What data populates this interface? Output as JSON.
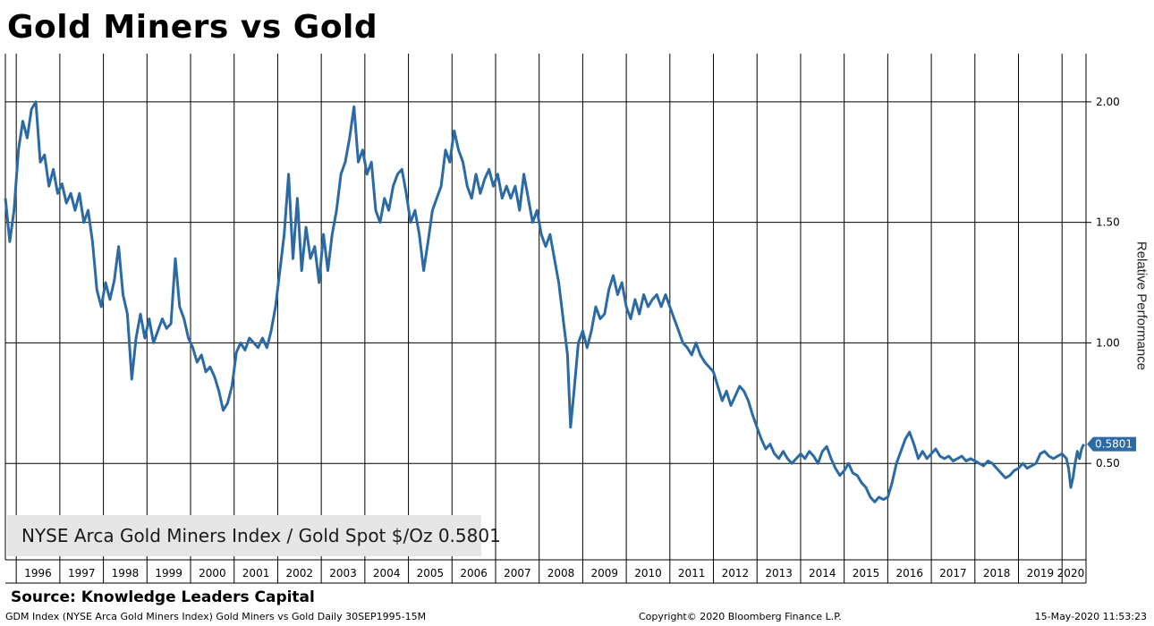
{
  "title": "Gold Miners vs Gold",
  "source": "Source: Knowledge Leaders Capital",
  "footer": {
    "left": "GDM Index (NYSE Arca Gold Miners Index) Gold Miners vs Gold  Daily 30SEP1995-15M",
    "middle": "Copyright© 2020 Bloomberg Finance L.P.",
    "right": "15-May-2020 11:53:23"
  },
  "legend": {
    "label": "NYSE Arca Gold Miners Index / Gold Spot $/Oz 0.5801"
  },
  "colors": {
    "series": "#2b6aa4",
    "grid": "#000000",
    "legend_bg": "#e6e6e6"
  },
  "chart_data": {
    "type": "line",
    "title": "Gold Miners vs Gold",
    "ylabel": "Relative Performance",
    "y_ticks": [
      2.0,
      1.5,
      1.0,
      0.5
    ],
    "y_tick_labels": [
      "2.00",
      "1.50",
      "1.00",
      "0.50"
    ],
    "ylim": [
      0.1,
      2.2
    ],
    "xlim": [
      1995.75,
      2020.55
    ],
    "x_years": [
      "1996",
      "1997",
      "1998",
      "1999",
      "2000",
      "2001",
      "2002",
      "2003",
      "2004",
      "2005",
      "2006",
      "2007",
      "2008",
      "2009",
      "2010",
      "2011",
      "2012",
      "2013",
      "2014",
      "2015",
      "2016",
      "2017",
      "2018",
      "2019",
      "2020"
    ],
    "grid": true,
    "y_axis_side": "right",
    "last_value": 0.5801,
    "last_value_label": "0.5801",
    "series": [
      {
        "name": "NYSE Arca Gold Miners Index / Gold Spot $/Oz",
        "points": [
          [
            1995.75,
            1.6
          ],
          [
            1995.85,
            1.42
          ],
          [
            1995.95,
            1.55
          ],
          [
            1996.05,
            1.8
          ],
          [
            1996.15,
            1.92
          ],
          [
            1996.25,
            1.85
          ],
          [
            1996.35,
            1.97
          ],
          [
            1996.45,
            2.0
          ],
          [
            1996.55,
            1.75
          ],
          [
            1996.65,
            1.78
          ],
          [
            1996.75,
            1.65
          ],
          [
            1996.85,
            1.72
          ],
          [
            1996.95,
            1.62
          ],
          [
            1997.05,
            1.66
          ],
          [
            1997.15,
            1.58
          ],
          [
            1997.25,
            1.62
          ],
          [
            1997.35,
            1.55
          ],
          [
            1997.45,
            1.62
          ],
          [
            1997.55,
            1.5
          ],
          [
            1997.65,
            1.55
          ],
          [
            1997.75,
            1.42
          ],
          [
            1997.85,
            1.22
          ],
          [
            1997.95,
            1.15
          ],
          [
            1998.05,
            1.25
          ],
          [
            1998.15,
            1.18
          ],
          [
            1998.25,
            1.26
          ],
          [
            1998.35,
            1.4
          ],
          [
            1998.45,
            1.2
          ],
          [
            1998.55,
            1.12
          ],
          [
            1998.65,
            0.85
          ],
          [
            1998.75,
            1.02
          ],
          [
            1998.85,
            1.12
          ],
          [
            1998.95,
            1.02
          ],
          [
            1999.05,
            1.1
          ],
          [
            1999.15,
            1.0
          ],
          [
            1999.25,
            1.05
          ],
          [
            1999.35,
            1.1
          ],
          [
            1999.45,
            1.06
          ],
          [
            1999.55,
            1.08
          ],
          [
            1999.65,
            1.35
          ],
          [
            1999.75,
            1.15
          ],
          [
            1999.85,
            1.1
          ],
          [
            1999.95,
            1.02
          ],
          [
            2000.05,
            0.98
          ],
          [
            2000.15,
            0.92
          ],
          [
            2000.25,
            0.95
          ],
          [
            2000.35,
            0.88
          ],
          [
            2000.45,
            0.9
          ],
          [
            2000.55,
            0.86
          ],
          [
            2000.65,
            0.8
          ],
          [
            2000.75,
            0.72
          ],
          [
            2000.85,
            0.75
          ],
          [
            2000.95,
            0.82
          ],
          [
            2001.05,
            0.96
          ],
          [
            2001.15,
            1.0
          ],
          [
            2001.25,
            0.97
          ],
          [
            2001.35,
            1.02
          ],
          [
            2001.45,
            1.0
          ],
          [
            2001.55,
            0.98
          ],
          [
            2001.65,
            1.02
          ],
          [
            2001.75,
            0.98
          ],
          [
            2001.85,
            1.05
          ],
          [
            2001.95,
            1.15
          ],
          [
            2002.05,
            1.3
          ],
          [
            2002.15,
            1.45
          ],
          [
            2002.25,
            1.7
          ],
          [
            2002.35,
            1.35
          ],
          [
            2002.45,
            1.6
          ],
          [
            2002.55,
            1.3
          ],
          [
            2002.65,
            1.48
          ],
          [
            2002.75,
            1.35
          ],
          [
            2002.85,
            1.4
          ],
          [
            2002.95,
            1.25
          ],
          [
            2003.05,
            1.45
          ],
          [
            2003.15,
            1.3
          ],
          [
            2003.25,
            1.45
          ],
          [
            2003.35,
            1.55
          ],
          [
            2003.45,
            1.7
          ],
          [
            2003.55,
            1.75
          ],
          [
            2003.65,
            1.85
          ],
          [
            2003.75,
            1.98
          ],
          [
            2003.85,
            1.75
          ],
          [
            2003.95,
            1.8
          ],
          [
            2004.05,
            1.7
          ],
          [
            2004.15,
            1.75
          ],
          [
            2004.25,
            1.55
          ],
          [
            2004.35,
            1.5
          ],
          [
            2004.45,
            1.6
          ],
          [
            2004.55,
            1.55
          ],
          [
            2004.65,
            1.65
          ],
          [
            2004.75,
            1.7
          ],
          [
            2004.85,
            1.72
          ],
          [
            2004.95,
            1.62
          ],
          [
            2005.05,
            1.5
          ],
          [
            2005.15,
            1.55
          ],
          [
            2005.25,
            1.45
          ],
          [
            2005.35,
            1.3
          ],
          [
            2005.45,
            1.42
          ],
          [
            2005.55,
            1.55
          ],
          [
            2005.65,
            1.6
          ],
          [
            2005.75,
            1.65
          ],
          [
            2005.85,
            1.8
          ],
          [
            2005.95,
            1.75
          ],
          [
            2006.05,
            1.88
          ],
          [
            2006.15,
            1.8
          ],
          [
            2006.25,
            1.75
          ],
          [
            2006.35,
            1.65
          ],
          [
            2006.45,
            1.6
          ],
          [
            2006.55,
            1.7
          ],
          [
            2006.65,
            1.62
          ],
          [
            2006.75,
            1.68
          ],
          [
            2006.85,
            1.72
          ],
          [
            2006.95,
            1.65
          ],
          [
            2007.05,
            1.7
          ],
          [
            2007.15,
            1.6
          ],
          [
            2007.25,
            1.65
          ],
          [
            2007.35,
            1.6
          ],
          [
            2007.45,
            1.65
          ],
          [
            2007.55,
            1.55
          ],
          [
            2007.65,
            1.7
          ],
          [
            2007.75,
            1.6
          ],
          [
            2007.85,
            1.5
          ],
          [
            2007.95,
            1.55
          ],
          [
            2008.05,
            1.45
          ],
          [
            2008.15,
            1.4
          ],
          [
            2008.25,
            1.45
          ],
          [
            2008.35,
            1.35
          ],
          [
            2008.45,
            1.25
          ],
          [
            2008.55,
            1.1
          ],
          [
            2008.65,
            0.95
          ],
          [
            2008.72,
            0.65
          ],
          [
            2008.8,
            0.8
          ],
          [
            2008.9,
            1.0
          ],
          [
            2009.0,
            1.05
          ],
          [
            2009.1,
            0.98
          ],
          [
            2009.2,
            1.05
          ],
          [
            2009.3,
            1.15
          ],
          [
            2009.4,
            1.1
          ],
          [
            2009.5,
            1.12
          ],
          [
            2009.6,
            1.22
          ],
          [
            2009.7,
            1.28
          ],
          [
            2009.8,
            1.2
          ],
          [
            2009.9,
            1.25
          ],
          [
            2010.0,
            1.15
          ],
          [
            2010.1,
            1.1
          ],
          [
            2010.2,
            1.18
          ],
          [
            2010.3,
            1.12
          ],
          [
            2010.4,
            1.2
          ],
          [
            2010.5,
            1.15
          ],
          [
            2010.6,
            1.18
          ],
          [
            2010.7,
            1.2
          ],
          [
            2010.8,
            1.15
          ],
          [
            2010.9,
            1.2
          ],
          [
            2011.0,
            1.15
          ],
          [
            2011.1,
            1.1
          ],
          [
            2011.2,
            1.05
          ],
          [
            2011.3,
            1.0
          ],
          [
            2011.4,
            0.98
          ],
          [
            2011.5,
            0.95
          ],
          [
            2011.6,
            1.0
          ],
          [
            2011.7,
            0.95
          ],
          [
            2011.8,
            0.92
          ],
          [
            2011.9,
            0.9
          ],
          [
            2012.0,
            0.88
          ],
          [
            2012.1,
            0.82
          ],
          [
            2012.2,
            0.76
          ],
          [
            2012.3,
            0.8
          ],
          [
            2012.4,
            0.74
          ],
          [
            2012.5,
            0.78
          ],
          [
            2012.6,
            0.82
          ],
          [
            2012.7,
            0.8
          ],
          [
            2012.8,
            0.76
          ],
          [
            2012.9,
            0.7
          ],
          [
            2013.0,
            0.65
          ],
          [
            2013.1,
            0.6
          ],
          [
            2013.2,
            0.56
          ],
          [
            2013.3,
            0.58
          ],
          [
            2013.4,
            0.54
          ],
          [
            2013.5,
            0.52
          ],
          [
            2013.6,
            0.55
          ],
          [
            2013.7,
            0.52
          ],
          [
            2013.8,
            0.5
          ],
          [
            2013.9,
            0.52
          ],
          [
            2014.0,
            0.54
          ],
          [
            2014.1,
            0.52
          ],
          [
            2014.2,
            0.55
          ],
          [
            2014.3,
            0.53
          ],
          [
            2014.4,
            0.5
          ],
          [
            2014.5,
            0.55
          ],
          [
            2014.6,
            0.57
          ],
          [
            2014.7,
            0.52
          ],
          [
            2014.8,
            0.48
          ],
          [
            2014.9,
            0.45
          ],
          [
            2015.0,
            0.47
          ],
          [
            2015.1,
            0.5
          ],
          [
            2015.2,
            0.46
          ],
          [
            2015.3,
            0.45
          ],
          [
            2015.4,
            0.42
          ],
          [
            2015.5,
            0.4
          ],
          [
            2015.6,
            0.36
          ],
          [
            2015.7,
            0.34
          ],
          [
            2015.8,
            0.36
          ],
          [
            2015.9,
            0.35
          ],
          [
            2016.0,
            0.36
          ],
          [
            2016.1,
            0.42
          ],
          [
            2016.2,
            0.5
          ],
          [
            2016.3,
            0.55
          ],
          [
            2016.4,
            0.6
          ],
          [
            2016.5,
            0.63
          ],
          [
            2016.6,
            0.58
          ],
          [
            2016.7,
            0.52
          ],
          [
            2016.8,
            0.55
          ],
          [
            2016.9,
            0.52
          ],
          [
            2017.0,
            0.54
          ],
          [
            2017.1,
            0.56
          ],
          [
            2017.2,
            0.53
          ],
          [
            2017.3,
            0.52
          ],
          [
            2017.4,
            0.53
          ],
          [
            2017.5,
            0.51
          ],
          [
            2017.6,
            0.52
          ],
          [
            2017.7,
            0.53
          ],
          [
            2017.8,
            0.51
          ],
          [
            2017.9,
            0.52
          ],
          [
            2018.0,
            0.51
          ],
          [
            2018.1,
            0.5
          ],
          [
            2018.2,
            0.49
          ],
          [
            2018.3,
            0.51
          ],
          [
            2018.4,
            0.5
          ],
          [
            2018.5,
            0.48
          ],
          [
            2018.6,
            0.46
          ],
          [
            2018.7,
            0.44
          ],
          [
            2018.8,
            0.45
          ],
          [
            2018.9,
            0.47
          ],
          [
            2019.0,
            0.48
          ],
          [
            2019.1,
            0.5
          ],
          [
            2019.2,
            0.48
          ],
          [
            2019.3,
            0.49
          ],
          [
            2019.4,
            0.5
          ],
          [
            2019.5,
            0.54
          ],
          [
            2019.6,
            0.55
          ],
          [
            2019.7,
            0.53
          ],
          [
            2019.8,
            0.52
          ],
          [
            2019.9,
            0.53
          ],
          [
            2020.0,
            0.54
          ],
          [
            2020.1,
            0.52
          ],
          [
            2020.15,
            0.48
          ],
          [
            2020.2,
            0.4
          ],
          [
            2020.25,
            0.44
          ],
          [
            2020.3,
            0.5
          ],
          [
            2020.35,
            0.55
          ],
          [
            2020.4,
            0.52
          ],
          [
            2020.45,
            0.56
          ],
          [
            2020.5,
            0.58
          ]
        ]
      }
    ]
  }
}
